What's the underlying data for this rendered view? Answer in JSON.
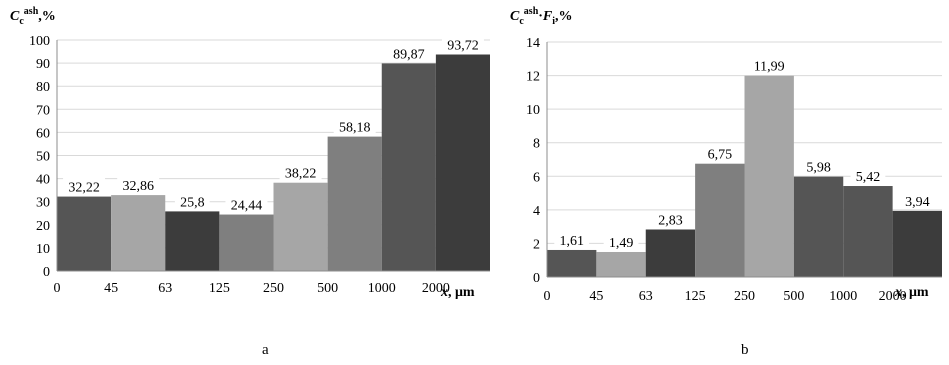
{
  "chart_data": [
    {
      "type": "bar",
      "panel": "a",
      "ylabel": {
        "main": "C",
        "sub": "c",
        "sup": "ash",
        "unit": ",%"
      },
      "xlabel": {
        "var": "x",
        "unit": ", μm"
      },
      "x_ticks": [
        "0",
        "45",
        "63",
        "125",
        "250",
        "500",
        "1000",
        "2000"
      ],
      "y_ticks": [
        "0",
        "10",
        "20",
        "30",
        "40",
        "50",
        "60",
        "70",
        "80",
        "90",
        "100"
      ],
      "ylim": [
        0,
        100
      ],
      "values": [
        32.22,
        32.86,
        25.8,
        24.44,
        38.22,
        58.18,
        89.87,
        93.72
      ],
      "value_labels": [
        "32,22",
        "32,86",
        "25,8",
        "24,44",
        "38,22",
        "58,18",
        "89,87",
        "93,72"
      ],
      "colors": [
        "#555555",
        "#a6a6a6",
        "#3c3c3c",
        "#7f7f7f",
        "#a6a6a6",
        "#7f7f7f",
        "#555555",
        "#3c3c3c"
      ],
      "grid": true,
      "legend": "none"
    },
    {
      "type": "bar",
      "panel": "b",
      "ylabel": {
        "main": "C",
        "sub": "c",
        "sup": "ash",
        "mid": "·",
        "main2": "F",
        "sub2": "i",
        "unit": ",%"
      },
      "xlabel": {
        "var": "x",
        "unit": ", μm"
      },
      "x_ticks": [
        "0",
        "45",
        "63",
        "125",
        "250",
        "500",
        "1000",
        "2000"
      ],
      "y_ticks": [
        "0",
        "2",
        "4",
        "6",
        "8",
        "10",
        "12",
        "14"
      ],
      "ylim": [
        0,
        14
      ],
      "values": [
        1.61,
        1.49,
        2.83,
        6.75,
        11.99,
        5.98,
        5.42,
        3.94
      ],
      "value_labels": [
        "1,61",
        "1,49",
        "2,83",
        "6,75",
        "11,99",
        "5,98",
        "5,42",
        "3,94"
      ],
      "colors": [
        "#555555",
        "#a6a6a6",
        "#3c3c3c",
        "#7f7f7f",
        "#a6a6a6",
        "#555555",
        "#555555",
        "#3c3c3c"
      ],
      "grid": true,
      "legend": "none"
    }
  ]
}
